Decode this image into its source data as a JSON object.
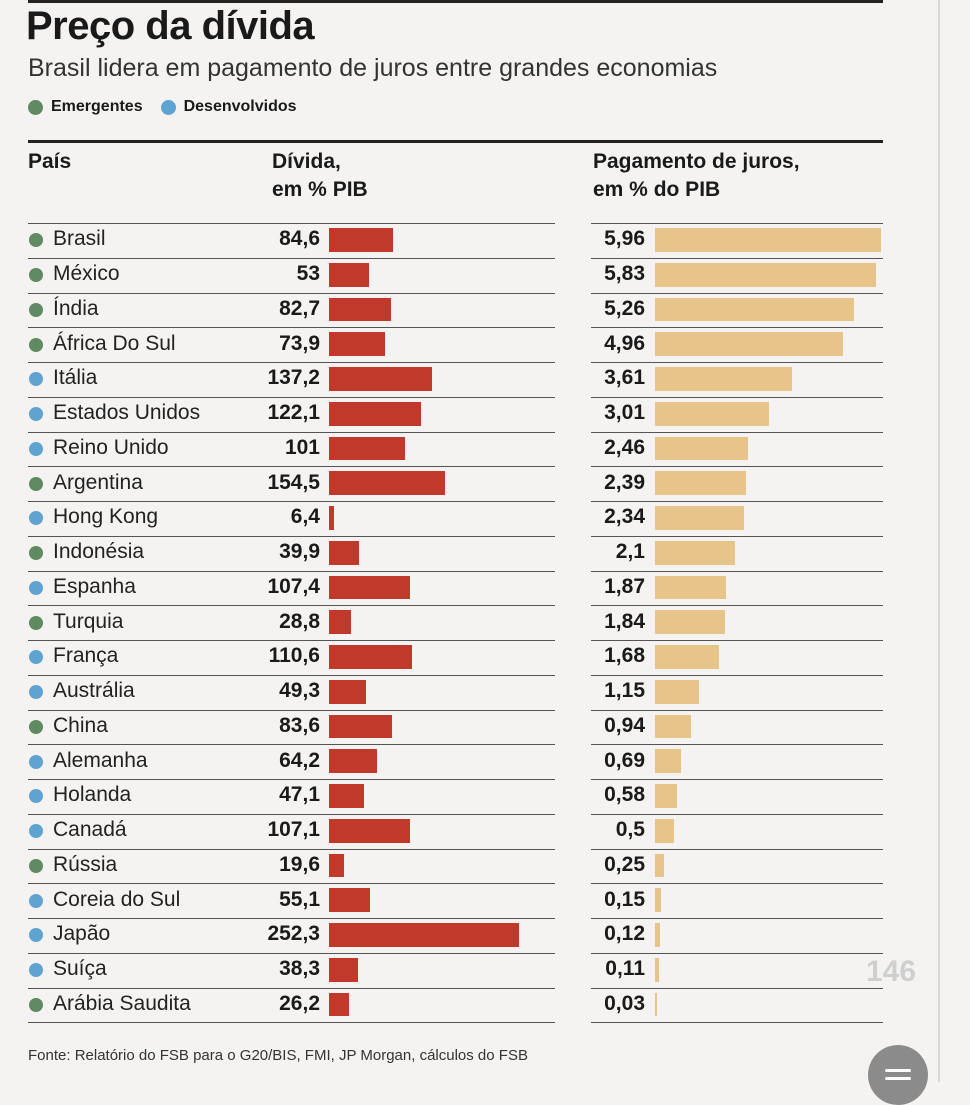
{
  "title": "Preço da dívida",
  "subtitle": "Brasil lidera em pagamento de juros entre grandes economias",
  "legend": [
    {
      "label": "Emergentes",
      "color": "#5f8a62"
    },
    {
      "label": "Desenvolvidos",
      "color": "#5fa3d0"
    }
  ],
  "headers": {
    "country": "País",
    "debt_line1": "Dívida,",
    "debt_line2": "em % PIB",
    "interest_line1": "Pagamento de juros,",
    "interest_line2": "em % do PIB"
  },
  "footer": "Fonte: Relatório do FSB para o G20/BIS, FMI, JP Morgan, cálculos do FSB",
  "overlay": {
    "page_number": "146"
  },
  "chart_data": {
    "type": "bar",
    "title": "Preço da dívida",
    "subtitle": "Brasil lidera em pagamento de juros entre grandes economias",
    "series_names": [
      "Dívida, em % PIB",
      "Pagamento de juros, em % do PIB"
    ],
    "group_colors": {
      "Emergentes": "#5f8a62",
      "Desenvolvidos": "#5fa3d0"
    },
    "debt_color": "#c0392b",
    "interest_color": "#e7c48a",
    "debt_max": 252.3,
    "interest_max": 5.96,
    "rows": [
      {
        "country": "Brasil",
        "group": "Emergentes",
        "debt": 84.6,
        "debt_label": "84,6",
        "interest": 5.96,
        "interest_label": "5,96"
      },
      {
        "country": "México",
        "group": "Emergentes",
        "debt": 53,
        "debt_label": "53",
        "interest": 5.83,
        "interest_label": "5,83"
      },
      {
        "country": "Índia",
        "group": "Emergentes",
        "debt": 82.7,
        "debt_label": "82,7",
        "interest": 5.26,
        "interest_label": "5,26"
      },
      {
        "country": "África Do Sul",
        "group": "Emergentes",
        "debt": 73.9,
        "debt_label": "73,9",
        "interest": 4.96,
        "interest_label": "4,96"
      },
      {
        "country": "Itália",
        "group": "Desenvolvidos",
        "debt": 137.2,
        "debt_label": "137,2",
        "interest": 3.61,
        "interest_label": "3,61"
      },
      {
        "country": "Estados Unidos",
        "group": "Desenvolvidos",
        "debt": 122.1,
        "debt_label": "122,1",
        "interest": 3.01,
        "interest_label": "3,01"
      },
      {
        "country": "Reino Unido",
        "group": "Desenvolvidos",
        "debt": 101,
        "debt_label": "101",
        "interest": 2.46,
        "interest_label": "2,46"
      },
      {
        "country": "Argentina",
        "group": "Emergentes",
        "debt": 154.5,
        "debt_label": "154,5",
        "interest": 2.39,
        "interest_label": "2,39"
      },
      {
        "country": "Hong Kong",
        "group": "Desenvolvidos",
        "debt": 6.4,
        "debt_label": "6,4",
        "interest": 2.34,
        "interest_label": "2,34"
      },
      {
        "country": "Indonésia",
        "group": "Emergentes",
        "debt": 39.9,
        "debt_label": "39,9",
        "interest": 2.1,
        "interest_label": "2,1"
      },
      {
        "country": "Espanha",
        "group": "Desenvolvidos",
        "debt": 107.4,
        "debt_label": "107,4",
        "interest": 1.87,
        "interest_label": "1,87"
      },
      {
        "country": "Turquia",
        "group": "Emergentes",
        "debt": 28.8,
        "debt_label": "28,8",
        "interest": 1.84,
        "interest_label": "1,84"
      },
      {
        "country": "França",
        "group": "Desenvolvidos",
        "debt": 110.6,
        "debt_label": "110,6",
        "interest": 1.68,
        "interest_label": "1,68"
      },
      {
        "country": "Austrália",
        "group": "Desenvolvidos",
        "debt": 49.3,
        "debt_label": "49,3",
        "interest": 1.15,
        "interest_label": "1,15"
      },
      {
        "country": "China",
        "group": "Emergentes",
        "debt": 83.6,
        "debt_label": "83,6",
        "interest": 0.94,
        "interest_label": "0,94"
      },
      {
        "country": "Alemanha",
        "group": "Desenvolvidos",
        "debt": 64.2,
        "debt_label": "64,2",
        "interest": 0.69,
        "interest_label": "0,69"
      },
      {
        "country": "Holanda",
        "group": "Desenvolvidos",
        "debt": 47.1,
        "debt_label": "47,1",
        "interest": 0.58,
        "interest_label": "0,58"
      },
      {
        "country": "Canadá",
        "group": "Desenvolvidos",
        "debt": 107.1,
        "debt_label": "107,1",
        "interest": 0.5,
        "interest_label": "0,5"
      },
      {
        "country": "Rússia",
        "group": "Emergentes",
        "debt": 19.6,
        "debt_label": "19,6",
        "interest": 0.25,
        "interest_label": "0,25"
      },
      {
        "country": "Coreia do Sul",
        "group": "Desenvolvidos",
        "debt": 55.1,
        "debt_label": "55,1",
        "interest": 0.15,
        "interest_label": "0,15"
      },
      {
        "country": "Japão",
        "group": "Desenvolvidos",
        "debt": 252.3,
        "debt_label": "252,3",
        "interest": 0.12,
        "interest_label": "0,12"
      },
      {
        "country": "Suíça",
        "group": "Desenvolvidos",
        "debt": 38.3,
        "debt_label": "38,3",
        "interest": 0.11,
        "interest_label": "0,11"
      },
      {
        "country": "Arábia Saudita",
        "group": "Emergentes",
        "debt": 26.2,
        "debt_label": "26,2",
        "interest": 0.03,
        "interest_label": "0,03"
      }
    ]
  }
}
